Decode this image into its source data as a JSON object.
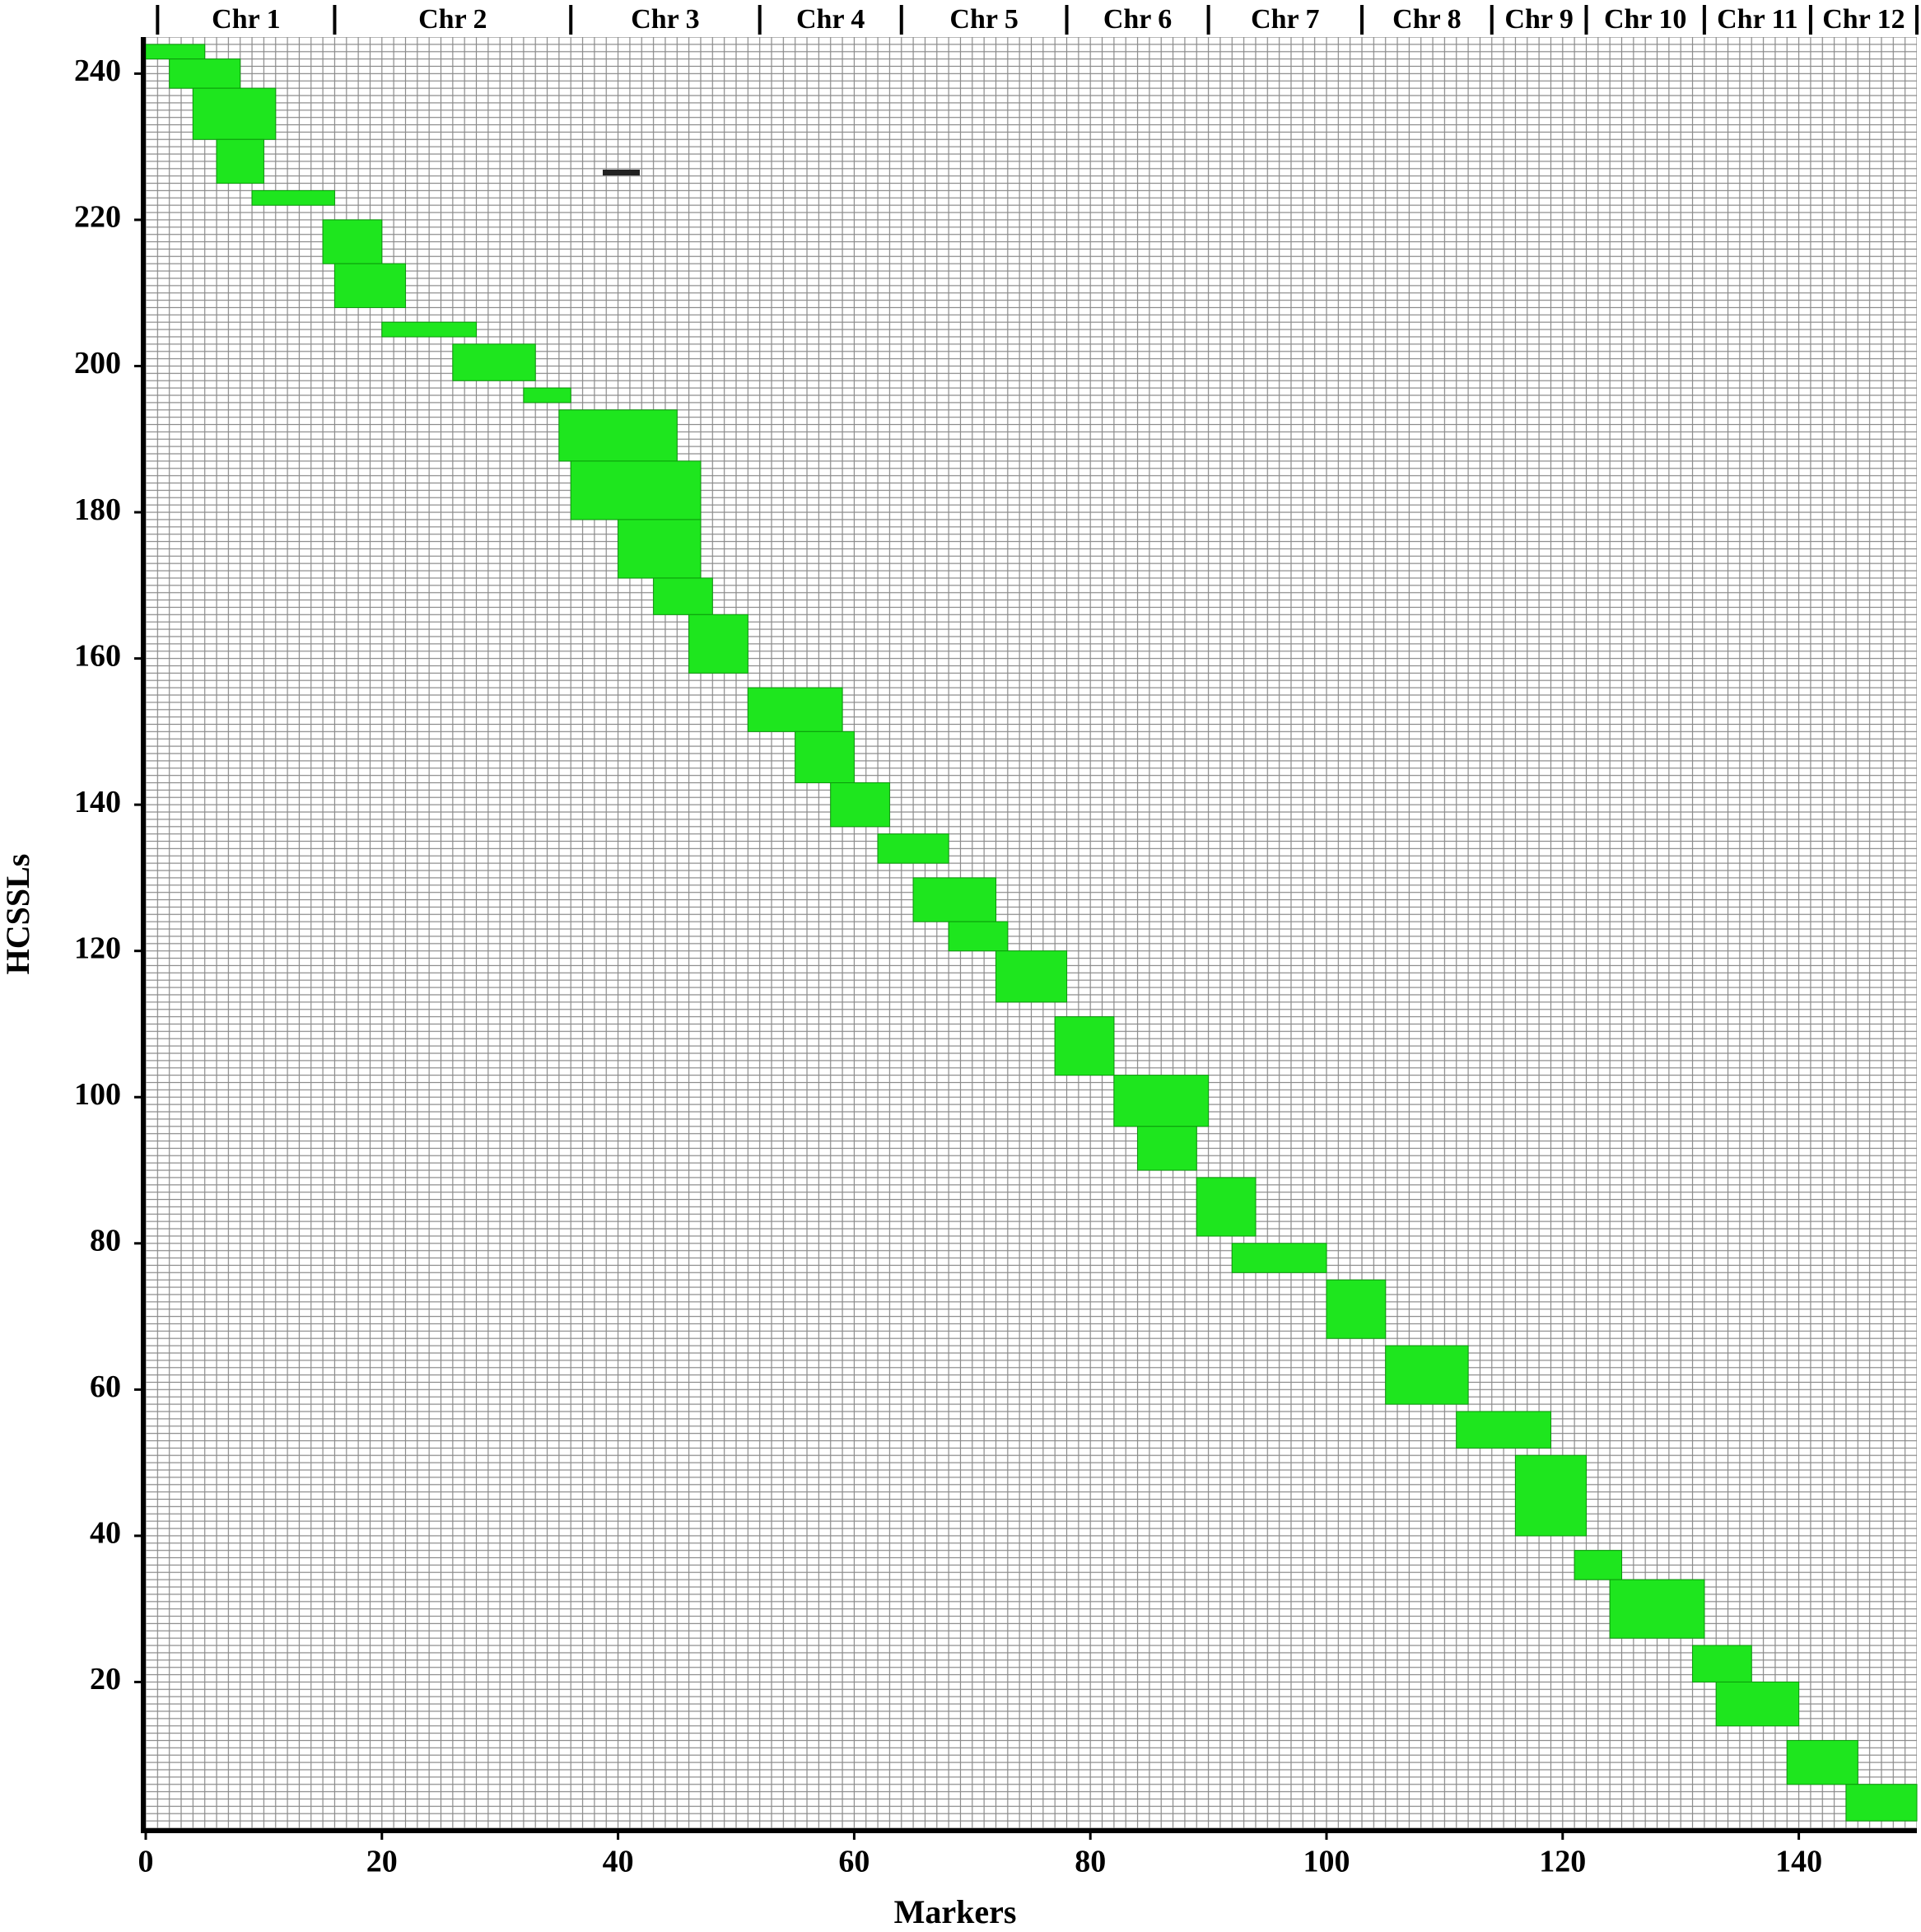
{
  "chart_data": {
    "type": "graphical-genotype",
    "x_label": "Markers",
    "y_label": "HCSSLs",
    "xlim": [
      0,
      150
    ],
    "ylim": [
      0,
      245
    ],
    "xticks": [
      0,
      20,
      40,
      60,
      80,
      100,
      120,
      140
    ],
    "yticks": [
      20,
      40,
      60,
      80,
      100,
      120,
      140,
      160,
      180,
      200,
      220,
      240
    ],
    "color": "#1ee61e",
    "chromosomes": {
      "labels": [
        "Chr 1",
        "Chr 2",
        "Chr 3",
        "Chr 4",
        "Chr 5",
        "Chr 6",
        "Chr 7",
        "Chr 8",
        "Chr 9",
        "Chr 10",
        "Chr 11",
        "Chr 12"
      ],
      "boundaries": [
        1,
        16,
        36,
        52,
        64,
        78,
        90,
        103,
        114,
        122,
        132,
        141,
        150
      ]
    },
    "blocks": [
      {
        "rows": [
          243,
          244
        ],
        "markers": [
          1,
          5
        ]
      },
      {
        "rows": [
          239,
          242
        ],
        "markers": [
          3,
          8
        ]
      },
      {
        "rows": [
          232,
          238
        ],
        "markers": [
          5,
          11
        ]
      },
      {
        "rows": [
          226,
          231
        ],
        "markers": [
          7,
          10
        ]
      },
      {
        "rows": [
          223,
          224
        ],
        "markers": [
          10,
          16
        ]
      },
      {
        "rows": [
          215,
          220
        ],
        "markers": [
          16,
          20
        ]
      },
      {
        "rows": [
          209,
          214
        ],
        "markers": [
          17,
          22
        ]
      },
      {
        "rows": [
          205,
          206
        ],
        "markers": [
          21,
          28
        ]
      },
      {
        "rows": [
          199,
          203
        ],
        "markers": [
          27,
          33
        ]
      },
      {
        "rows": [
          196,
          197
        ],
        "markers": [
          33,
          36
        ]
      },
      {
        "rows": [
          188,
          194
        ],
        "markers": [
          36,
          45
        ]
      },
      {
        "rows": [
          180,
          187
        ],
        "markers": [
          37,
          47
        ]
      },
      {
        "rows": [
          172,
          179
        ],
        "markers": [
          41,
          47
        ]
      },
      {
        "rows": [
          167,
          171
        ],
        "markers": [
          44,
          48
        ]
      },
      {
        "rows": [
          159,
          166
        ],
        "markers": [
          47,
          51
        ]
      },
      {
        "rows": [
          151,
          156
        ],
        "markers": [
          52,
          59
        ]
      },
      {
        "rows": [
          144,
          150
        ],
        "markers": [
          56,
          60
        ]
      },
      {
        "rows": [
          138,
          143
        ],
        "markers": [
          59,
          63
        ]
      },
      {
        "rows": [
          133,
          136
        ],
        "markers": [
          63,
          68
        ]
      },
      {
        "rows": [
          125,
          130
        ],
        "markers": [
          66,
          72
        ]
      },
      {
        "rows": [
          121,
          124
        ],
        "markers": [
          69,
          73
        ]
      },
      {
        "rows": [
          114,
          120
        ],
        "markers": [
          73,
          78
        ]
      },
      {
        "rows": [
          104,
          111
        ],
        "markers": [
          78,
          82
        ]
      },
      {
        "rows": [
          97,
          103
        ],
        "markers": [
          83,
          90
        ]
      },
      {
        "rows": [
          91,
          96
        ],
        "markers": [
          85,
          89
        ]
      },
      {
        "rows": [
          82,
          89
        ],
        "markers": [
          90,
          94
        ]
      },
      {
        "rows": [
          77,
          80
        ],
        "markers": [
          93,
          100
        ]
      },
      {
        "rows": [
          68,
          75
        ],
        "markers": [
          101,
          105
        ]
      },
      {
        "rows": [
          59,
          66
        ],
        "markers": [
          106,
          112
        ]
      },
      {
        "rows": [
          53,
          57
        ],
        "markers": [
          112,
          119
        ]
      },
      {
        "rows": [
          41,
          51
        ],
        "markers": [
          117,
          122
        ]
      },
      {
        "rows": [
          35,
          38
        ],
        "markers": [
          122,
          125
        ]
      },
      {
        "rows": [
          27,
          34
        ],
        "markers": [
          125,
          132
        ]
      },
      {
        "rows": [
          21,
          25
        ],
        "markers": [
          132,
          136
        ]
      },
      {
        "rows": [
          15,
          20
        ],
        "markers": [
          134,
          140
        ]
      },
      {
        "rows": [
          7,
          12
        ],
        "markers": [
          140,
          145
        ]
      },
      {
        "rows": [
          2,
          6
        ],
        "markers": [
          145,
          150
        ]
      }
    ]
  }
}
